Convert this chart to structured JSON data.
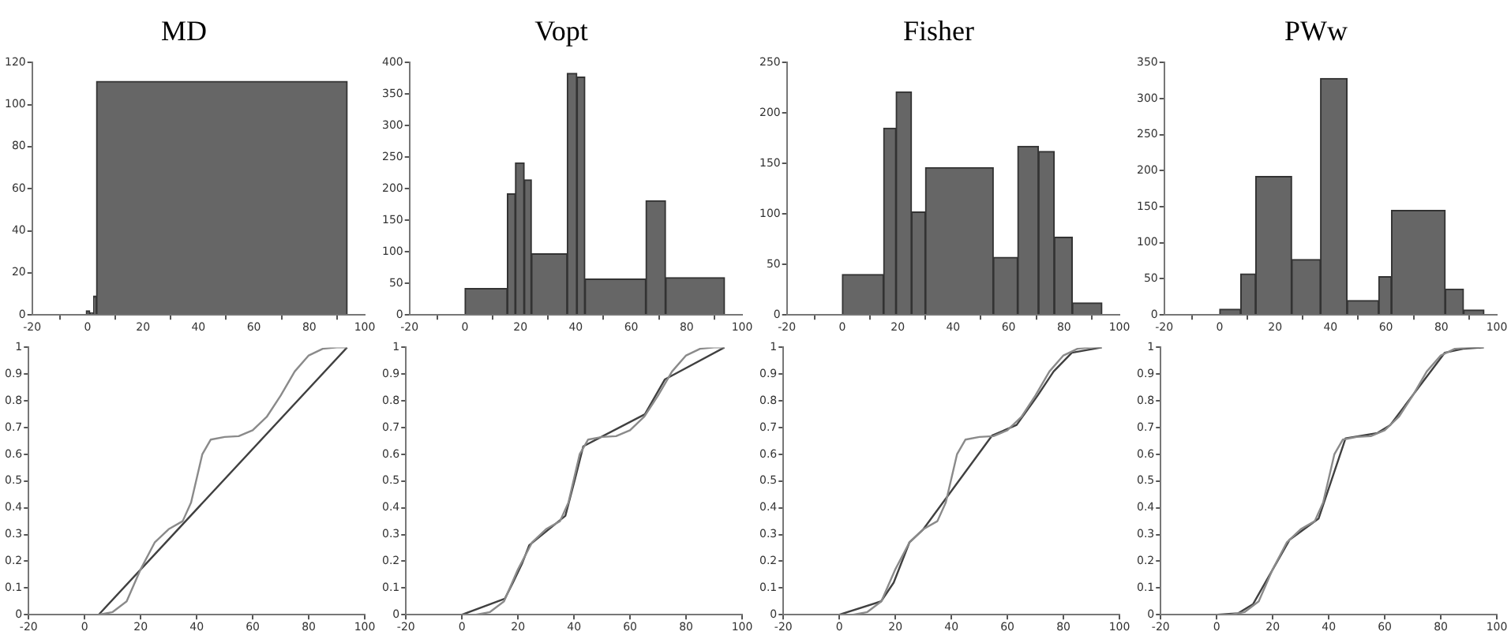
{
  "chart_data": [
    {
      "type": "histogram",
      "title": "MD",
      "bins": [
        -0.5,
        0.8,
        2.2,
        3.2,
        93.7
      ],
      "values": [
        2,
        1,
        9,
        111
      ],
      "color": "#666666",
      "xlim": [
        -20,
        100
      ],
      "xticks": [
        -20,
        0,
        20,
        40,
        60,
        80,
        100
      ],
      "ylim": [
        0,
        120
      ],
      "yticks": [
        0,
        20,
        40,
        60,
        80,
        100,
        120
      ]
    },
    {
      "type": "histogram",
      "title": "Vopt",
      "bins": [
        0,
        15.3,
        18.2,
        21.4,
        24,
        36.9,
        40.4,
        43.3,
        65.3,
        72.4,
        93.7
      ],
      "values": [
        42,
        192,
        241,
        214,
        97,
        383,
        377,
        57,
        181,
        59
      ],
      "color": "#666666",
      "xlim": [
        -20,
        100
      ],
      "xticks": [
        -20,
        0,
        20,
        40,
        60,
        80,
        100
      ],
      "ylim": [
        0,
        400
      ],
      "yticks": [
        0,
        50,
        100,
        150,
        200,
        250,
        300,
        350,
        400
      ]
    },
    {
      "type": "histogram",
      "title": "Fisher",
      "bins": [
        0,
        14.9,
        19.4,
        25,
        30,
        54.5,
        63.3,
        70.8,
        76.5,
        83,
        93.7
      ],
      "values": [
        40,
        185,
        221,
        102,
        146,
        57,
        167,
        162,
        77,
        12
      ],
      "color": "#666666",
      "xlim": [
        -20,
        100
      ],
      "xticks": [
        -20,
        0,
        20,
        40,
        60,
        80,
        100
      ],
      "ylim": [
        0,
        250
      ],
      "yticks": [
        0,
        50,
        100,
        150,
        200,
        250
      ]
    },
    {
      "type": "histogram",
      "title": "PWw",
      "bins": [
        0,
        7.6,
        13,
        26,
        36.4,
        46,
        57.4,
        62,
        81.4,
        88,
        95.4
      ],
      "values": [
        8,
        57,
        192,
        77,
        328,
        20,
        53,
        145,
        36,
        7
      ],
      "color": "#666666",
      "xlim": [
        -20,
        100
      ],
      "xticks": [
        -20,
        0,
        20,
        40,
        60,
        80,
        100
      ],
      "ylim": [
        0,
        350
      ],
      "yticks": [
        0,
        50,
        100,
        150,
        200,
        250,
        300,
        350
      ]
    },
    {
      "type": "line",
      "marker": "none",
      "xlim": [
        -20,
        100
      ],
      "xticks": [
        -20,
        0,
        20,
        40,
        60,
        80,
        100
      ],
      "ylim": [
        0,
        1
      ],
      "yticks": [
        0,
        0.1,
        0.2,
        0.3,
        0.4,
        0.5,
        0.6,
        0.7,
        0.8,
        0.9,
        1
      ],
      "series": [
        {
          "color": "#8a8a8a",
          "x": [
            0,
            5,
            10,
            15,
            20,
            25,
            30,
            35,
            38,
            42,
            45,
            50,
            55,
            60,
            65,
            70,
            75,
            80,
            85,
            90,
            93.7
          ],
          "values": [
            0,
            0,
            0.01,
            0.05,
            0.17,
            0.27,
            0.32,
            0.35,
            0.42,
            0.6,
            0.655,
            0.665,
            0.668,
            0.69,
            0.74,
            0.82,
            0.91,
            0.97,
            0.995,
            1,
            1
          ]
        },
        {
          "color": "#404040",
          "x": [
            0,
            5,
            93.7
          ],
          "values": [
            0,
            0,
            1
          ]
        }
      ]
    },
    {
      "type": "line",
      "marker": "none",
      "xlim": [
        -20,
        100
      ],
      "xticks": [
        -20,
        0,
        20,
        40,
        60,
        80,
        100
      ],
      "ylim": [
        0,
        1
      ],
      "yticks": [
        0,
        0.1,
        0.2,
        0.3,
        0.4,
        0.5,
        0.6,
        0.7,
        0.8,
        0.9,
        1
      ],
      "series": [
        {
          "color": "#8a8a8a",
          "x": [
            0,
            5,
            10,
            15,
            20,
            25,
            30,
            35,
            38,
            42,
            45,
            50,
            55,
            60,
            65,
            70,
            75,
            80,
            85,
            90,
            93.7
          ],
          "values": [
            0,
            0,
            0.01,
            0.05,
            0.17,
            0.27,
            0.32,
            0.35,
            0.42,
            0.6,
            0.655,
            0.665,
            0.668,
            0.69,
            0.74,
            0.82,
            0.91,
            0.97,
            0.995,
            1,
            1
          ]
        },
        {
          "color": "#404040",
          "x": [
            0,
            15.3,
            18.2,
            21.4,
            24,
            36.9,
            40.4,
            43.3,
            65.3,
            72.4,
            93.7
          ],
          "values": [
            0,
            0.06,
            0.12,
            0.19,
            0.26,
            0.37,
            0.51,
            0.63,
            0.75,
            0.88,
            1
          ]
        }
      ]
    },
    {
      "type": "line",
      "marker": "none",
      "xlim": [
        -20,
        100
      ],
      "xticks": [
        -20,
        0,
        20,
        40,
        60,
        80,
        100
      ],
      "ylim": [
        0,
        1
      ],
      "yticks": [
        0,
        0.1,
        0.2,
        0.3,
        0.4,
        0.5,
        0.6,
        0.7,
        0.8,
        0.9,
        1
      ],
      "series": [
        {
          "color": "#8a8a8a",
          "x": [
            0,
            5,
            10,
            15,
            20,
            25,
            30,
            35,
            38,
            42,
            45,
            50,
            55,
            60,
            65,
            70,
            75,
            80,
            85,
            90,
            93.7
          ],
          "values": [
            0,
            0,
            0.01,
            0.05,
            0.17,
            0.27,
            0.32,
            0.35,
            0.42,
            0.6,
            0.655,
            0.665,
            0.668,
            0.69,
            0.74,
            0.82,
            0.91,
            0.97,
            0.995,
            1,
            1
          ]
        },
        {
          "color": "#404040",
          "x": [
            0,
            14.9,
            19.4,
            25,
            30,
            54.5,
            63.3,
            70.8,
            76.5,
            83,
            93.7
          ],
          "values": [
            0,
            0.05,
            0.12,
            0.27,
            0.32,
            0.67,
            0.71,
            0.82,
            0.91,
            0.98,
            1
          ]
        }
      ]
    },
    {
      "type": "line",
      "marker": "none",
      "xlim": [
        -20,
        100
      ],
      "xticks": [
        -20,
        0,
        20,
        40,
        60,
        80,
        100
      ],
      "ylim": [
        0,
        1
      ],
      "yticks": [
        0,
        0.1,
        0.2,
        0.3,
        0.4,
        0.5,
        0.6,
        0.7,
        0.8,
        0.9,
        1
      ],
      "series": [
        {
          "color": "#8a8a8a",
          "x": [
            0,
            5,
            10,
            15,
            20,
            25,
            30,
            35,
            38,
            42,
            45,
            50,
            55,
            60,
            65,
            70,
            75,
            80,
            85,
            90,
            93.7
          ],
          "values": [
            0,
            0,
            0.01,
            0.05,
            0.17,
            0.27,
            0.32,
            0.35,
            0.42,
            0.6,
            0.655,
            0.665,
            0.668,
            0.69,
            0.74,
            0.82,
            0.91,
            0.97,
            0.995,
            1,
            1
          ]
        },
        {
          "color": "#404040",
          "x": [
            0,
            7.6,
            13,
            26,
            36.4,
            46,
            57.4,
            62,
            81.4,
            88,
            95.4
          ],
          "values": [
            0,
            0.005,
            0.04,
            0.28,
            0.36,
            0.66,
            0.68,
            0.71,
            0.98,
            0.995,
            1
          ]
        }
      ]
    }
  ]
}
